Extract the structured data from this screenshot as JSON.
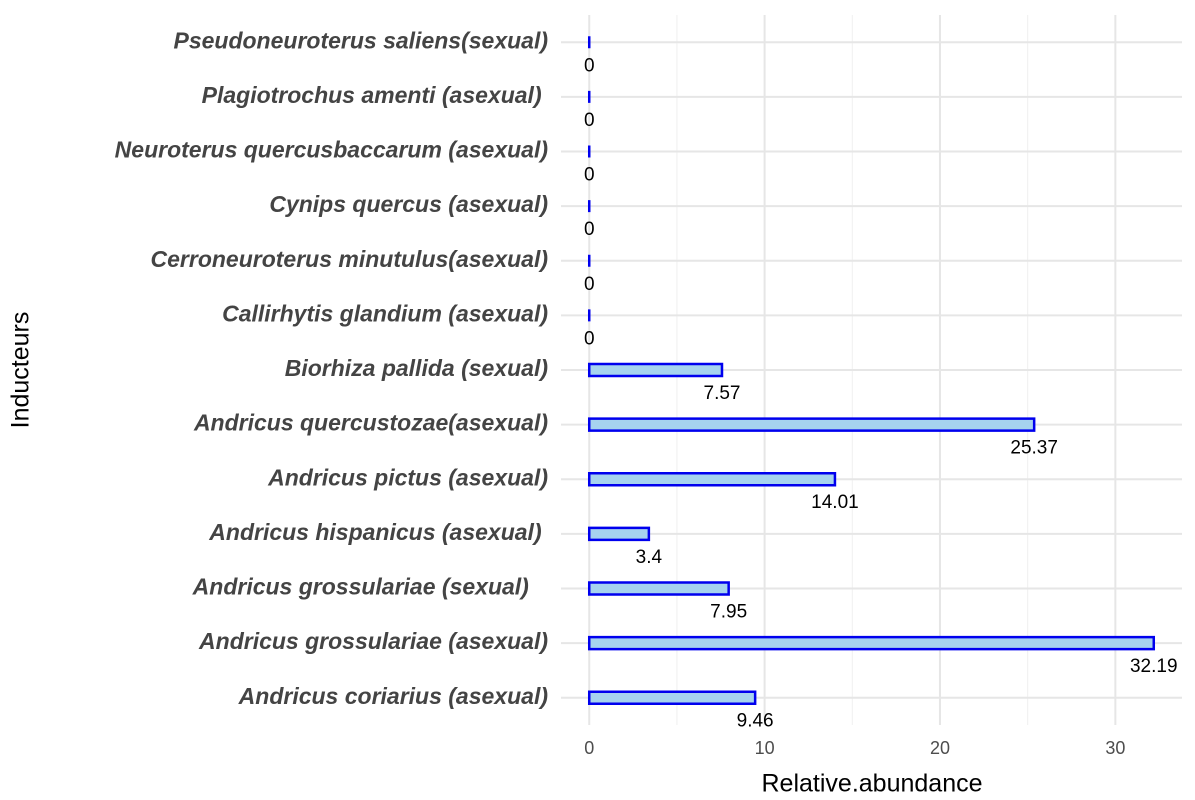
{
  "chart_data": {
    "type": "hbar",
    "xlabel": "Relative.abundance",
    "ylabel": "Inducteurs",
    "categories": [
      "Pseudoneuroterus saliens(sexual)",
      "Plagiotrochus amenti (asexual) ",
      "Neuroterus quercusbaccarum (asexual)",
      "Cynips quercus (asexual)",
      "Cerroneuroterus minutulus(asexual)",
      "Callirhytis glandium (asexual)",
      "Biorhiza pallida (sexual)",
      "Andricus quercustozae(asexual)",
      "Andricus pictus (asexual)",
      "Andricus hispanicus (asexual) ",
      "Andricus grossulariae (sexual)   ",
      "Andricus grossulariae (asexual)",
      "Andricus coriarius (asexual)"
    ],
    "values": [
      0,
      0,
      0,
      0,
      0,
      0,
      7.57,
      25.37,
      14.01,
      3.4,
      7.95,
      32.19,
      9.46
    ],
    "color": "#a6d3ef",
    "edgecolor": "#0000ee",
    "xlim": [
      -1.61,
      33.8
    ],
    "xticks": [
      0,
      10,
      20,
      30
    ],
    "x_minor_grid": [
      5,
      15,
      25
    ],
    "grid": true
  }
}
